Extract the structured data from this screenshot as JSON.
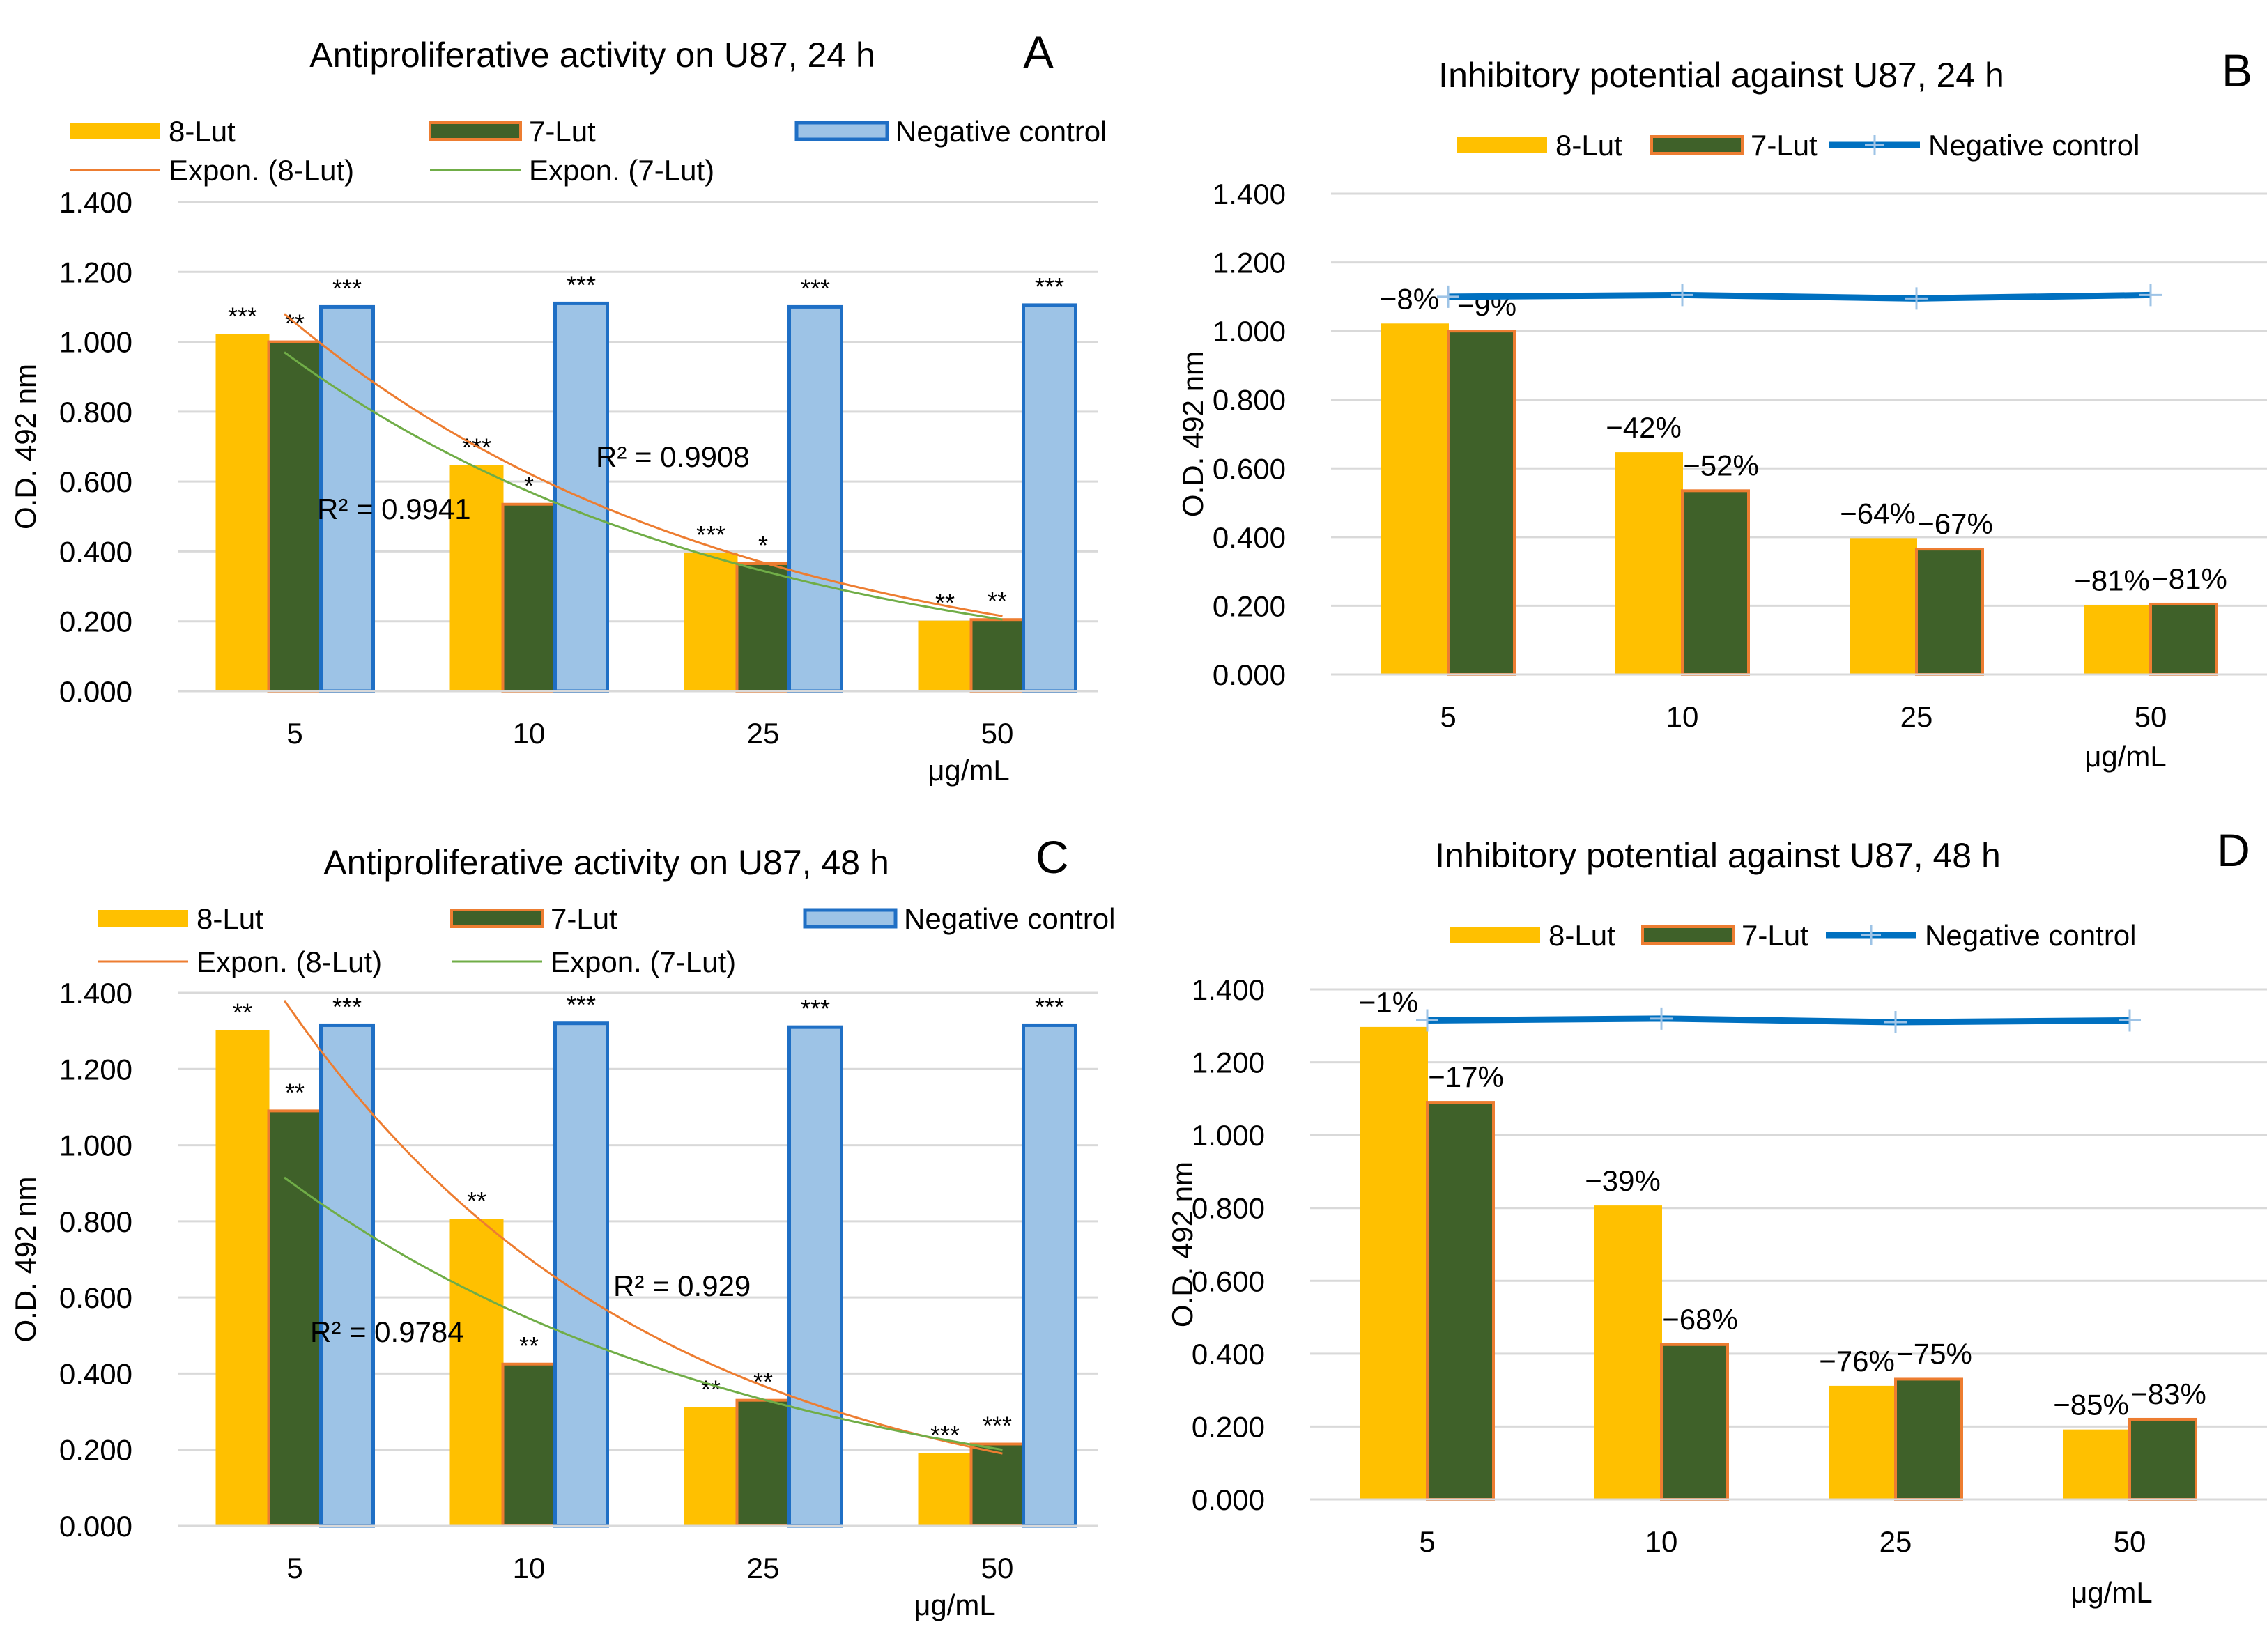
{
  "colors": {
    "lut8": "#FFC000",
    "lut7": "#3F6129",
    "lut7_outline": "#ED7D31",
    "neg_fill": "#9DC3E6",
    "neg_outline": "#1F6FC5",
    "neg_line": "#0070C0",
    "fit8": "#ED7D31",
    "fit7": "#70AD47",
    "grid": "#D9D9D9"
  },
  "chart_data": [
    {
      "type": "bar",
      "panel_letter": "A",
      "title": "Antiproliferative activity on U87, 24 h",
      "ylabel": "O.D. 492 nm",
      "xlabel": "μg/mL",
      "ylim": [
        0,
        1.4
      ],
      "yticks": [
        "0.000",
        "0.200",
        "0.400",
        "0.600",
        "0.800",
        "1.000",
        "1.200",
        "1.400"
      ],
      "categories": [
        "5",
        "10",
        "25",
        "50"
      ],
      "series": [
        {
          "name": "8-Lut",
          "values": [
            1.02,
            0.645,
            0.395,
            0.2
          ],
          "stars": [
            "***",
            "***",
            "***",
            "**"
          ]
        },
        {
          "name": "7-Lut",
          "values": [
            1.0,
            0.535,
            0.365,
            0.205
          ],
          "stars": [
            "**",
            "*",
            "*",
            "**"
          ]
        },
        {
          "name": "Negative control",
          "values": [
            1.1,
            1.11,
            1.1,
            1.105
          ],
          "stars": [
            "***",
            "***",
            "***",
            "***"
          ]
        }
      ],
      "trendlines": [
        {
          "name": "Expon. (8-Lut)",
          "r2_text": "R² = 0.9908",
          "start": 1.08,
          "end": 0.215
        },
        {
          "name": "Expon. (7-Lut)",
          "r2_text": "R² = 0.9941",
          "start": 0.97,
          "end": 0.205
        }
      ],
      "legend": [
        {
          "label": "8-Lut",
          "kind": "bar8"
        },
        {
          "label": "7-Lut",
          "kind": "bar7"
        },
        {
          "label": "Negative control",
          "kind": "barneg"
        },
        {
          "label": "Expon. (8-Lut)",
          "kind": "fit8"
        },
        {
          "label": "Expon. (7-Lut)",
          "kind": "fit7"
        }
      ]
    },
    {
      "type": "bar",
      "panel_letter": "B",
      "title": "Inhibitory potential against U87, 24 h",
      "ylabel": "O.D. 492 nm",
      "xlabel": "μg/mL",
      "ylim": [
        0,
        1.4
      ],
      "yticks": [
        "0.000",
        "0.200",
        "0.400",
        "0.600",
        "0.800",
        "1.000",
        "1.200",
        "1.400"
      ],
      "categories": [
        "5",
        "10",
        "25",
        "50"
      ],
      "series": [
        {
          "name": "8-Lut",
          "values": [
            1.02,
            0.645,
            0.395,
            0.2
          ],
          "labels": [
            "−8%",
            "−42%",
            "−64%",
            "−81%"
          ]
        },
        {
          "name": "7-Lut",
          "values": [
            1.0,
            0.535,
            0.365,
            0.205
          ],
          "labels": [
            "−9%",
            "−52%",
            "−67%",
            "−81%"
          ]
        }
      ],
      "line": {
        "name": "Negative control",
        "values": [
          1.1,
          1.105,
          1.095,
          1.105
        ]
      },
      "legend": [
        {
          "label": "8-Lut",
          "kind": "bar8"
        },
        {
          "label": "7-Lut",
          "kind": "bar7"
        },
        {
          "label": "Negative control",
          "kind": "line"
        }
      ]
    },
    {
      "type": "bar",
      "panel_letter": "C",
      "title": "Antiproliferative activity on U87, 48 h",
      "ylabel": "O.D. 492 nm",
      "xlabel": "μg/mL",
      "ylim": [
        0,
        1.4
      ],
      "yticks": [
        "0.000",
        "0.200",
        "0.400",
        "0.600",
        "0.800",
        "1.000",
        "1.200",
        "1.400"
      ],
      "categories": [
        "5",
        "10",
        "25",
        "50"
      ],
      "series": [
        {
          "name": "8-Lut",
          "values": [
            1.3,
            0.805,
            0.31,
            0.19
          ],
          "stars": [
            "**",
            "**",
            "**",
            "***"
          ]
        },
        {
          "name": "7-Lut",
          "values": [
            1.09,
            0.425,
            0.33,
            0.215
          ],
          "stars": [
            "**",
            "**",
            "**",
            "***"
          ]
        },
        {
          "name": "Negative control",
          "values": [
            1.315,
            1.32,
            1.31,
            1.315
          ],
          "stars": [
            "***",
            "***",
            "***",
            "***"
          ]
        }
      ],
      "trendlines": [
        {
          "name": "Expon. (8-Lut)",
          "r2_text": "R² = 0.929",
          "start": 1.38,
          "end": 0.19
        },
        {
          "name": "Expon. (7-Lut)",
          "r2_text": "R² = 0.9784",
          "start": 0.915,
          "end": 0.2
        }
      ],
      "legend": [
        {
          "label": "8-Lut",
          "kind": "bar8"
        },
        {
          "label": "7-Lut",
          "kind": "bar7"
        },
        {
          "label": "Negative control",
          "kind": "barneg"
        },
        {
          "label": "Expon. (8-Lut)",
          "kind": "fit8"
        },
        {
          "label": "Expon. (7-Lut)",
          "kind": "fit7"
        }
      ]
    },
    {
      "type": "bar",
      "panel_letter": "D",
      "title": "Inhibitory potential against U87, 48 h",
      "ylabel": "O.D. 492 nm",
      "xlabel": "μg/mL",
      "ylim": [
        0,
        1.4
      ],
      "yticks": [
        "0.000",
        "0.200",
        "0.400",
        "0.600",
        "0.800",
        "1.000",
        "1.200",
        "1.400"
      ],
      "categories": [
        "5",
        "10",
        "25",
        "50"
      ],
      "series": [
        {
          "name": "8-Lut",
          "values": [
            1.295,
            0.805,
            0.31,
            0.19
          ],
          "labels": [
            "−1%",
            "−39%",
            "−76%",
            "−85%"
          ]
        },
        {
          "name": "7-Lut",
          "values": [
            1.09,
            0.425,
            0.33,
            0.22
          ],
          "labels": [
            "−17%",
            "−68%",
            "−75%",
            "−83%"
          ]
        }
      ],
      "line": {
        "name": "Negative control",
        "values": [
          1.315,
          1.32,
          1.31,
          1.315
        ]
      },
      "legend": [
        {
          "label": "8-Lut",
          "kind": "bar8"
        },
        {
          "label": "7-Lut",
          "kind": "bar7"
        },
        {
          "label": "Negative control",
          "kind": "line"
        }
      ]
    }
  ]
}
